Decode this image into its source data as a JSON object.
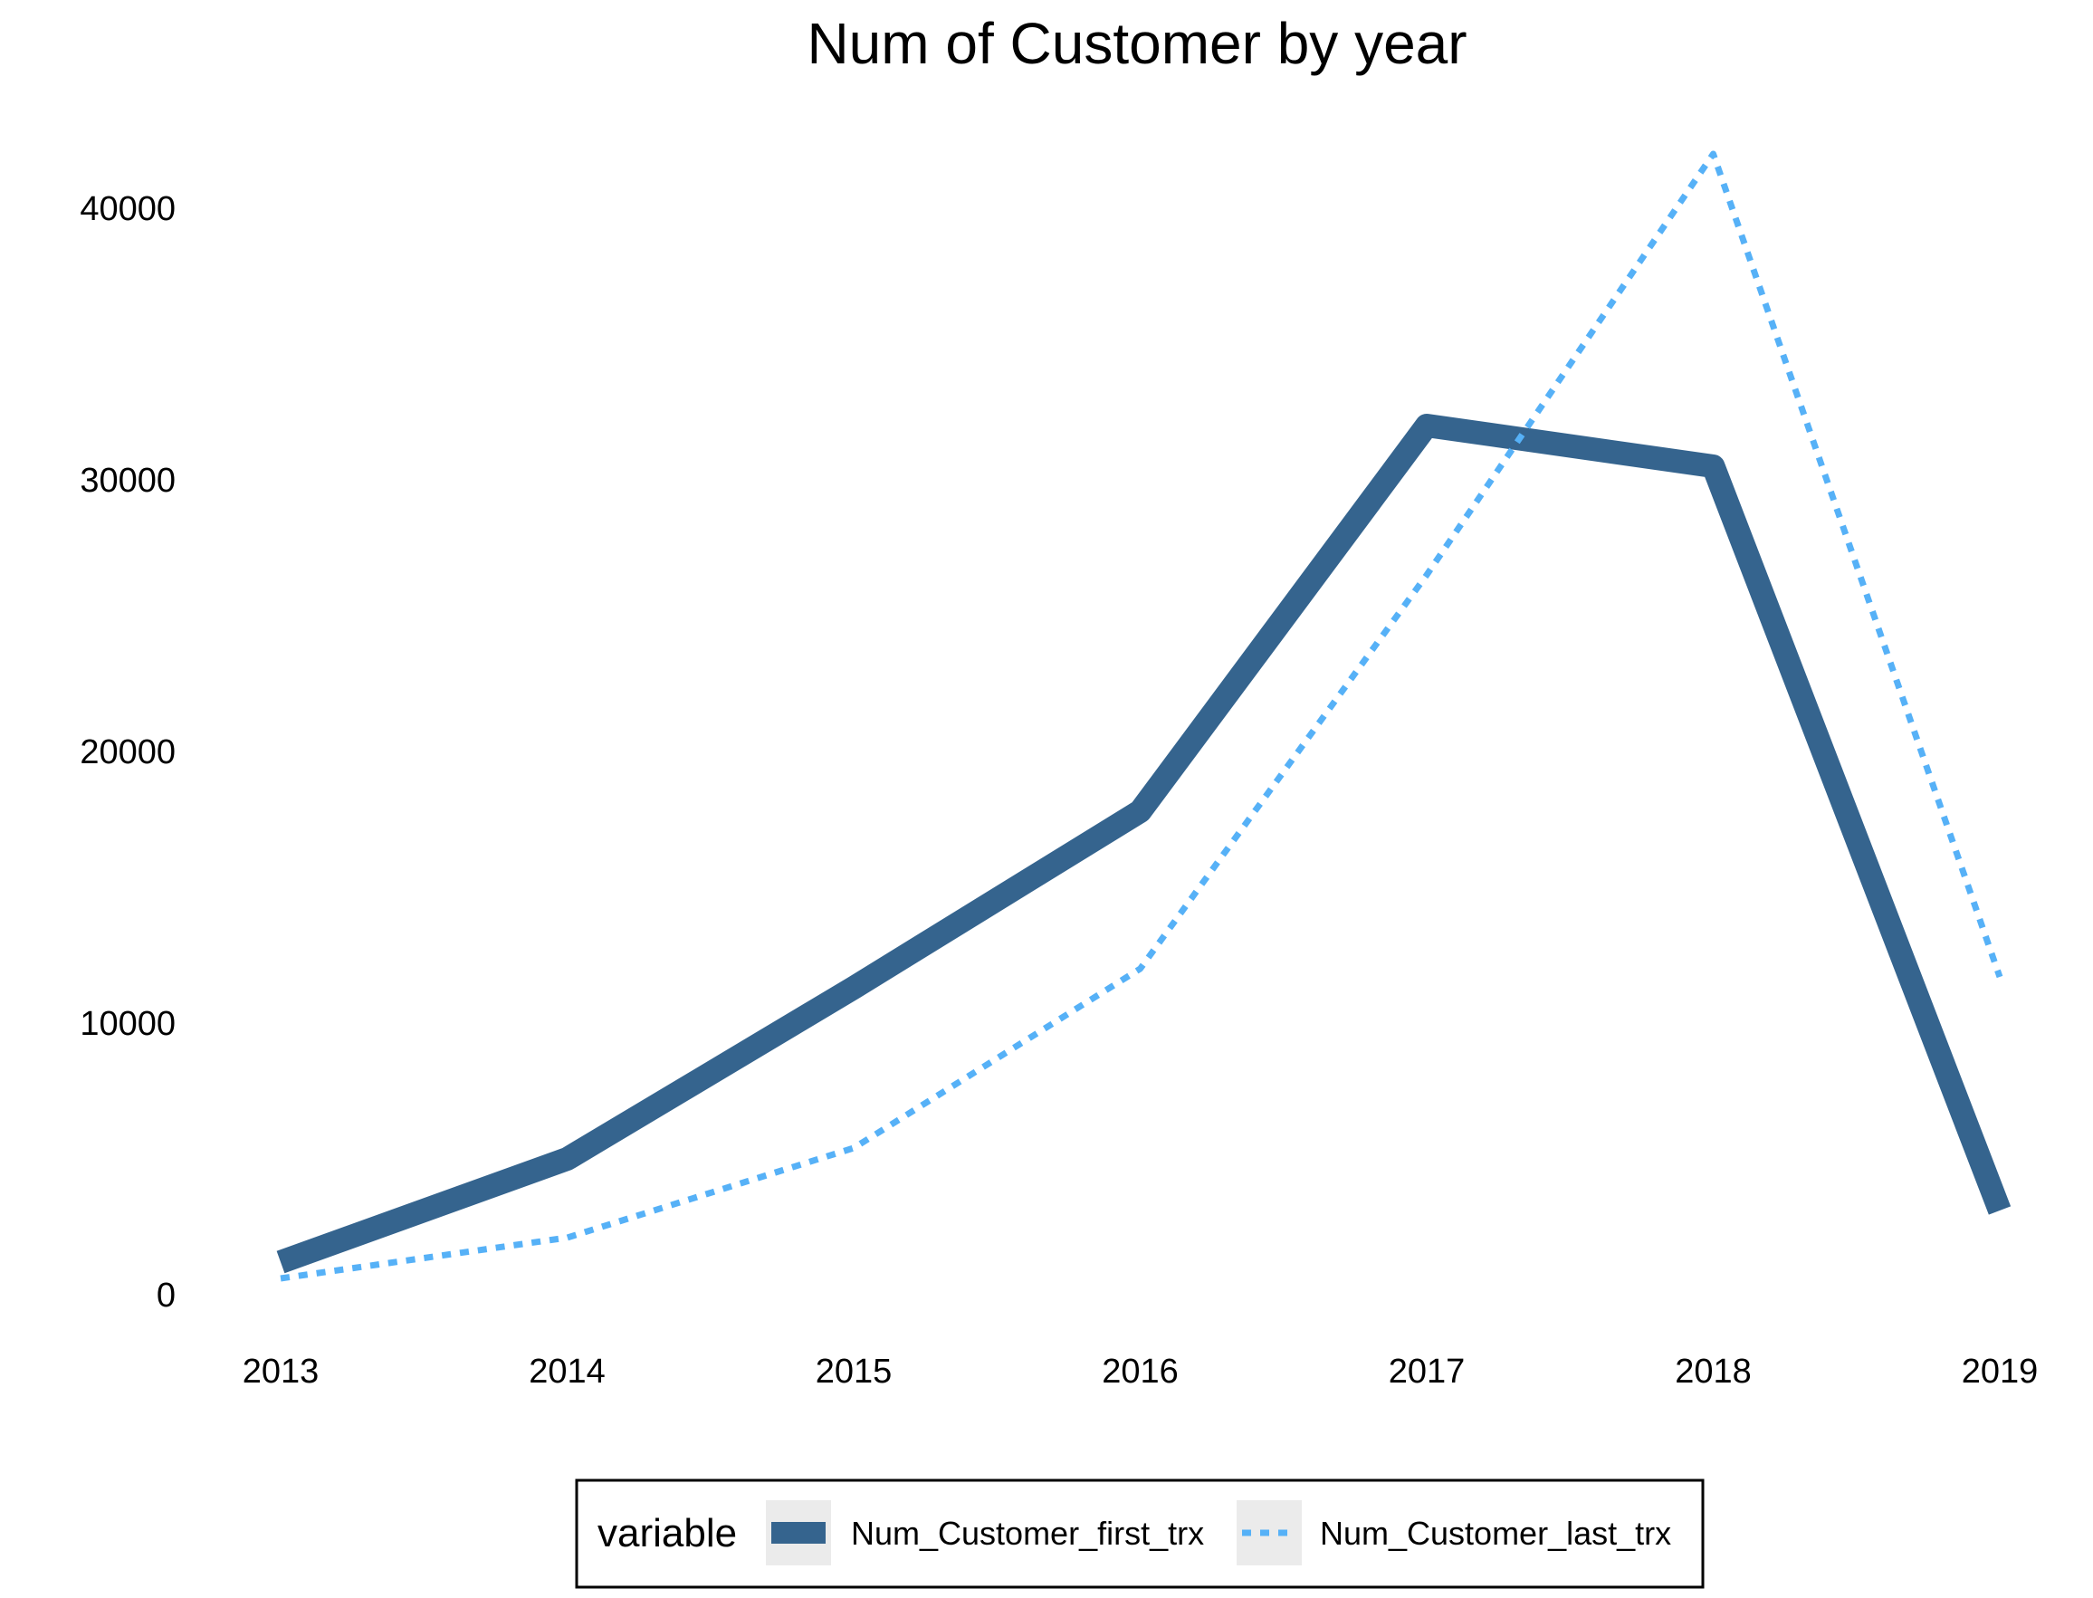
{
  "chart_data": {
    "type": "line",
    "title": "Num of Customer by year",
    "xlabel": "",
    "ylabel": "",
    "categories": [
      "2013",
      "2014",
      "2015",
      "2016",
      "2017",
      "2018",
      "2019"
    ],
    "ylim": [
      0,
      42000
    ],
    "yticks": [
      0,
      10000,
      20000,
      30000,
      40000
    ],
    "grid": false,
    "legend": {
      "title": "variable",
      "position": "bottom"
    },
    "series": [
      {
        "name": "Num_Customer_first_trx",
        "style": "solid",
        "color": "#35648E",
        "values": [
          1200,
          5000,
          11300,
          17800,
          32000,
          30500,
          3100
        ]
      },
      {
        "name": "Num_Customer_last_trx",
        "style": "dotted",
        "color": "#56B1F7",
        "values": [
          600,
          2100,
          5400,
          12000,
          26500,
          42000,
          11700
        ]
      }
    ]
  }
}
